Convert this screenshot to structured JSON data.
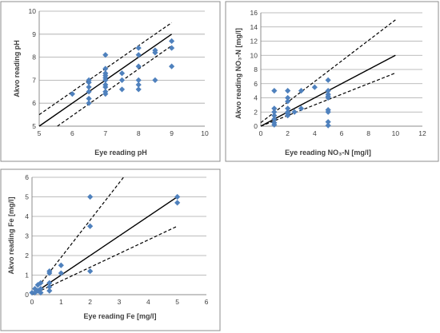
{
  "chart_data": [
    {
      "id": "ph",
      "type": "scatter",
      "xlabel": "Eye reading pH",
      "ylabel": "Akvo reading pH",
      "xlim": [
        5,
        10
      ],
      "ylim": [
        5,
        10
      ],
      "xticks": [
        5,
        6,
        7,
        8,
        9,
        10
      ],
      "yticks": [
        5,
        6,
        7,
        8,
        9,
        10
      ],
      "grid": "horizontal",
      "points": [
        [
          6,
          6.4
        ],
        [
          6.5,
          7.0
        ],
        [
          6.5,
          6.9
        ],
        [
          6.5,
          6.7
        ],
        [
          6.5,
          6.5
        ],
        [
          6.5,
          6.2
        ],
        [
          6.5,
          6.0
        ],
        [
          7,
          8.1
        ],
        [
          7,
          7.5
        ],
        [
          7,
          7.3
        ],
        [
          7,
          7.2
        ],
        [
          7,
          7.1
        ],
        [
          7,
          7.0
        ],
        [
          7,
          6.8
        ],
        [
          7,
          6.7
        ],
        [
          7,
          6.5
        ],
        [
          7,
          6.4
        ],
        [
          7.5,
          7.3
        ],
        [
          7.5,
          7.0
        ],
        [
          7.5,
          6.6
        ],
        [
          8,
          8.4
        ],
        [
          8,
          8.1
        ],
        [
          8,
          7.6
        ],
        [
          8,
          7.0
        ],
        [
          8,
          6.8
        ],
        [
          8,
          6.6
        ],
        [
          8.5,
          8.3
        ],
        [
          8.5,
          8.2
        ],
        [
          8.5,
          7.0
        ],
        [
          9,
          8.7
        ],
        [
          9,
          8.4
        ],
        [
          9,
          7.6
        ]
      ],
      "fit_line": [
        [
          5,
          5
        ],
        [
          9,
          9
        ]
      ],
      "upper_bound": [
        [
          5,
          5.5
        ],
        [
          9,
          9.5
        ]
      ],
      "lower_bound": [
        [
          5.55,
          5
        ],
        [
          9,
          8.5
        ]
      ]
    },
    {
      "id": "no3",
      "type": "scatter",
      "xlabel": "Eye reading NO₃-N [mg/l]",
      "ylabel": "Akvo reading NO₃-N [mg/l]",
      "xlim": [
        0,
        12
      ],
      "ylim": [
        0,
        16
      ],
      "xticks": [
        0,
        2,
        4,
        6,
        8,
        10,
        12
      ],
      "yticks": [
        0,
        2,
        4,
        6,
        8,
        10,
        12,
        14,
        16
      ],
      "grid": "horizontal",
      "points": [
        [
          1,
          5.0
        ],
        [
          1,
          2.5
        ],
        [
          1,
          2.0
        ],
        [
          1,
          1.5
        ],
        [
          1,
          1.0
        ],
        [
          1,
          0.5
        ],
        [
          1,
          0.2
        ],
        [
          2,
          5.0
        ],
        [
          2,
          4.0
        ],
        [
          2,
          3.5
        ],
        [
          2,
          2.5
        ],
        [
          2,
          2.0
        ],
        [
          2,
          1.8
        ],
        [
          2,
          1.5
        ],
        [
          2.5,
          2.0
        ],
        [
          3,
          5.0
        ],
        [
          3,
          2.5
        ],
        [
          4,
          5.5
        ],
        [
          5,
          6.5
        ],
        [
          5,
          5.0
        ],
        [
          5,
          4.5
        ],
        [
          5,
          4.2
        ],
        [
          5,
          4.0
        ],
        [
          5,
          2.3
        ],
        [
          5,
          2.0
        ],
        [
          5,
          0.6
        ],
        [
          5,
          0.1
        ]
      ],
      "fit_line": [
        [
          0,
          0
        ],
        [
          10,
          10
        ]
      ],
      "upper_bound": [
        [
          0,
          0.5
        ],
        [
          10,
          15
        ]
      ],
      "lower_bound": [
        [
          0,
          0
        ],
        [
          10,
          7.5
        ]
      ]
    },
    {
      "id": "fe",
      "type": "scatter",
      "xlabel": "Eye reading Fe [mg/l]",
      "ylabel": "Akvo reading Fe [mg/l]",
      "xlim": [
        0,
        6
      ],
      "ylim": [
        0,
        6
      ],
      "xticks": [
        0,
        1,
        2,
        3,
        4,
        5,
        6
      ],
      "yticks": [
        0,
        1,
        2,
        3,
        4,
        5,
        6
      ],
      "grid": "horizontal",
      "points": [
        [
          0,
          0.1
        ],
        [
          0.1,
          0.1
        ],
        [
          0.1,
          0.3
        ],
        [
          0.2,
          0.2
        ],
        [
          0.2,
          0.5
        ],
        [
          0.3,
          0.1
        ],
        [
          0.3,
          0.6
        ],
        [
          0.3,
          0.3
        ],
        [
          0.6,
          1.2
        ],
        [
          0.6,
          1.1
        ],
        [
          0.6,
          0.6
        ],
        [
          0.6,
          0.4
        ],
        [
          0.6,
          0.2
        ],
        [
          1,
          1.5
        ],
        [
          1,
          1.1
        ],
        [
          2,
          5.0
        ],
        [
          2,
          3.5
        ],
        [
          2,
          1.2
        ],
        [
          5,
          5.0
        ],
        [
          5,
          4.7
        ]
      ],
      "fit_line": [
        [
          0,
          0
        ],
        [
          5,
          5
        ]
      ],
      "upper_bound": [
        [
          0,
          0
        ],
        [
          3.15,
          6
        ]
      ],
      "lower_bound": [
        [
          0,
          0
        ],
        [
          5,
          3.5
        ]
      ]
    }
  ]
}
